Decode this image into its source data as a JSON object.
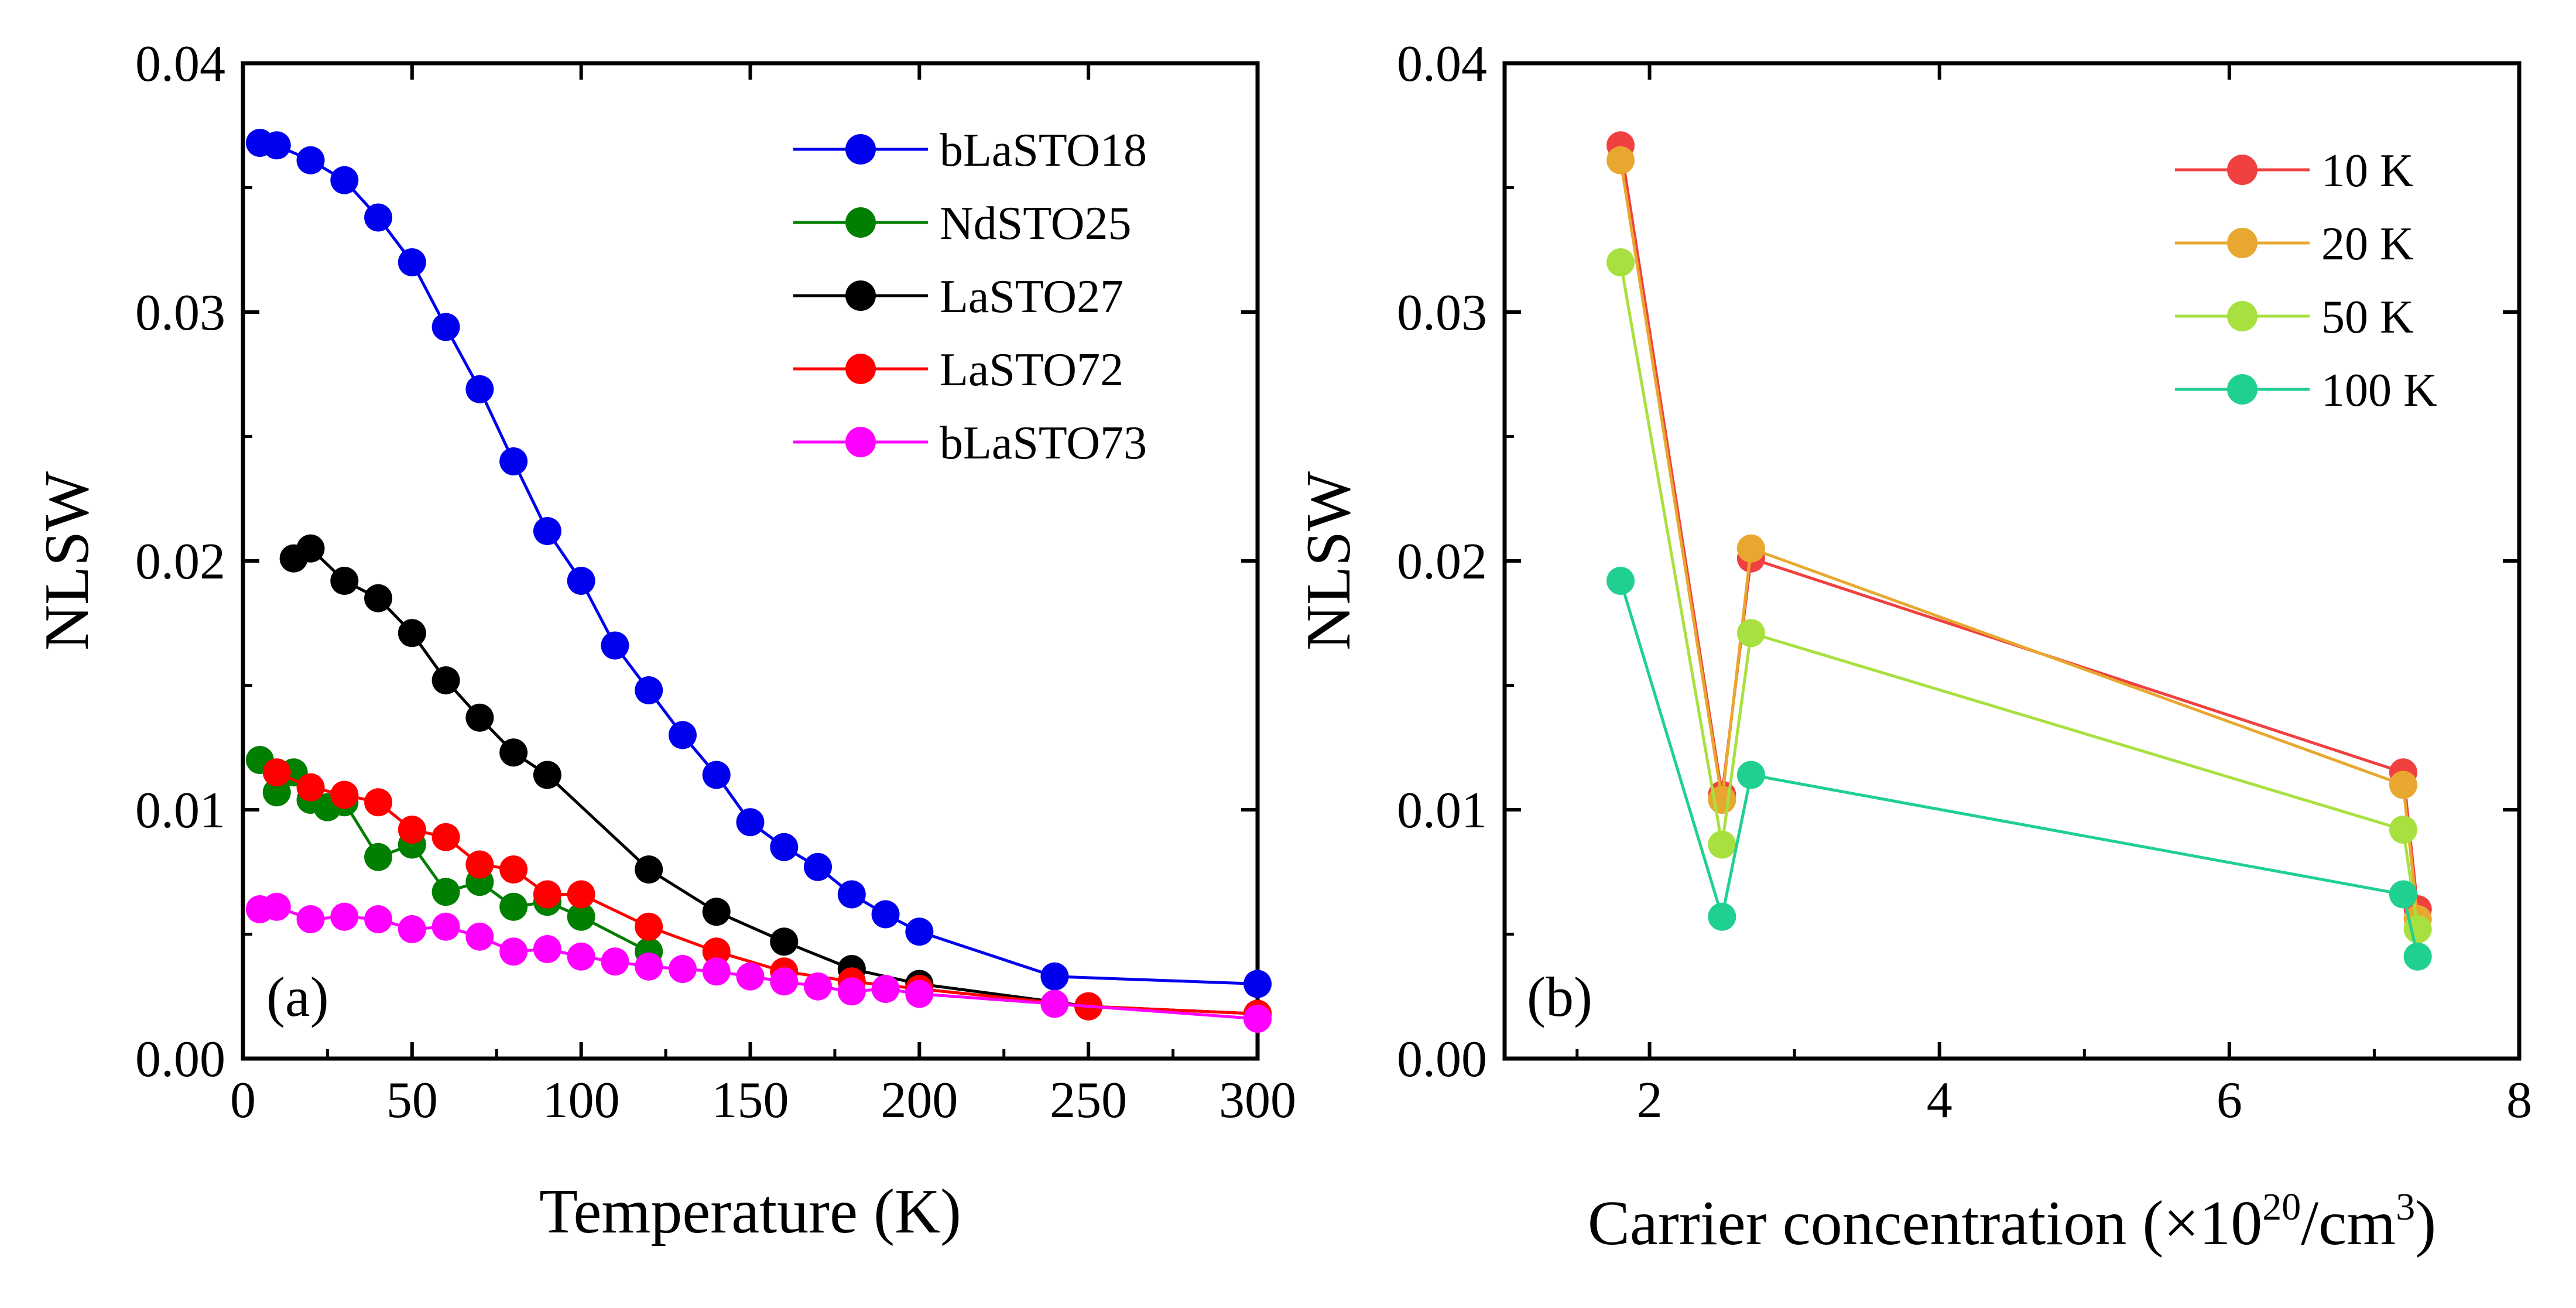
{
  "chart_data": [
    {
      "type": "line",
      "panel_label": "(a)",
      "xlabel": "Temperature (K)",
      "ylabel": "NLSW",
      "xlim": [
        0,
        300
      ],
      "ylim": [
        0.0,
        0.04
      ],
      "xticks": [
        0,
        50,
        100,
        150,
        200,
        250,
        300
      ],
      "yticks": [
        0.0,
        0.01,
        0.02,
        0.03,
        0.04
      ],
      "xtick_labels": [
        "0",
        "50",
        "100",
        "150",
        "200",
        "250",
        "300"
      ],
      "ytick_labels": [
        "0.00",
        "0.01",
        "0.02",
        "0.03",
        "0.04"
      ],
      "legend_position": "top-right",
      "series": [
        {
          "name": "bLaSTO18",
          "color": "#0000ee",
          "x": [
            5,
            10,
            20,
            30,
            40,
            50,
            60,
            70,
            80,
            90,
            100,
            110,
            120,
            130,
            140,
            150,
            160,
            170,
            180,
            190,
            200,
            240,
            300
          ],
          "y": [
            0.0368,
            0.0367,
            0.0361,
            0.0353,
            0.0338,
            0.032,
            0.0294,
            0.0269,
            0.024,
            0.0212,
            0.0192,
            0.0166,
            0.0148,
            0.013,
            0.0114,
            0.0095,
            0.0085,
            0.0077,
            0.0066,
            0.0058,
            0.0051,
            0.0033,
            0.003
          ]
        },
        {
          "name": "NdSTO25",
          "color": "#007f00",
          "x": [
            5,
            10,
            15,
            20,
            25,
            30,
            40,
            50,
            60,
            70,
            80,
            90,
            100,
            120
          ],
          "y": [
            0.012,
            0.0107,
            0.0115,
            0.0104,
            0.0101,
            0.0103,
            0.0081,
            0.0086,
            0.0067,
            0.0071,
            0.0061,
            0.0063,
            0.0057,
            0.0043
          ]
        },
        {
          "name": "LaSTO27",
          "color": "#000000",
          "x": [
            15,
            20,
            30,
            40,
            50,
            60,
            70,
            80,
            90,
            120,
            140,
            160,
            180,
            200,
            250,
            300
          ],
          "y": [
            0.0201,
            0.0205,
            0.0192,
            0.0185,
            0.0171,
            0.0152,
            0.0137,
            0.0123,
            0.0114,
            0.0076,
            0.0059,
            0.0047,
            0.0036,
            0.003,
            0.0021,
            0.0018
          ]
        },
        {
          "name": "LaSTO72",
          "color": "#ff0000",
          "x": [
            10,
            20,
            30,
            40,
            50,
            60,
            70,
            80,
            90,
            100,
            120,
            140,
            160,
            180,
            200,
            250,
            300
          ],
          "y": [
            0.0115,
            0.0109,
            0.0106,
            0.0103,
            0.0092,
            0.0089,
            0.0078,
            0.0076,
            0.0066,
            0.0066,
            0.0053,
            0.0043,
            0.0035,
            0.0031,
            0.0028,
            0.0021,
            0.0018
          ]
        },
        {
          "name": "bLaSTO73",
          "color": "#ff00ff",
          "x": [
            5,
            10,
            20,
            30,
            40,
            50,
            60,
            70,
            80,
            90,
            100,
            110,
            120,
            130,
            140,
            150,
            160,
            170,
            180,
            190,
            200,
            240,
            300
          ],
          "y": [
            0.006,
            0.0061,
            0.0056,
            0.0057,
            0.0056,
            0.0052,
            0.0053,
            0.0049,
            0.0043,
            0.0044,
            0.0041,
            0.0039,
            0.0037,
            0.0036,
            0.0035,
            0.0033,
            0.0031,
            0.0029,
            0.0027,
            0.0028,
            0.0026,
            0.0022,
            0.0016
          ]
        }
      ]
    },
    {
      "type": "line",
      "panel_label": "(b)",
      "xlabel_prefix": "Carrier concentration (×10",
      "xlabel_sup1": "20",
      "xlabel_mid": "/cm",
      "xlabel_sup2": "3",
      "xlabel_suffix": ")",
      "ylabel": "NLSW",
      "xlim": [
        1,
        8
      ],
      "ylim": [
        0.0,
        0.04
      ],
      "xticks": [
        2,
        4,
        6,
        8
      ],
      "yticks": [
        0.0,
        0.01,
        0.02,
        0.03,
        0.04
      ],
      "xtick_labels": [
        "2",
        "4",
        "6",
        "8"
      ],
      "ytick_labels": [
        "0.00",
        "0.01",
        "0.02",
        "0.03",
        "0.04"
      ],
      "legend_position": "top-right",
      "series": [
        {
          "name": "10 K",
          "color": "#f04040",
          "x": [
            1.8,
            2.5,
            2.7,
            7.2,
            7.3
          ],
          "y": [
            0.0367,
            0.0106,
            0.0201,
            0.0115,
            0.006
          ]
        },
        {
          "name": "20 K",
          "color": "#e8a830",
          "x": [
            1.8,
            2.5,
            2.7,
            7.2,
            7.3
          ],
          "y": [
            0.0361,
            0.0104,
            0.0205,
            0.011,
            0.0056
          ]
        },
        {
          "name": "50 K",
          "color": "#a8e040",
          "x": [
            1.8,
            2.5,
            2.7,
            7.2,
            7.3
          ],
          "y": [
            0.032,
            0.0086,
            0.0171,
            0.0092,
            0.0052
          ]
        },
        {
          "name": "100 K",
          "color": "#20d090",
          "x": [
            1.8,
            2.5,
            2.7,
            7.2,
            7.3
          ],
          "y": [
            0.0192,
            0.0057,
            0.0114,
            0.0066,
            0.0041
          ]
        }
      ]
    }
  ]
}
